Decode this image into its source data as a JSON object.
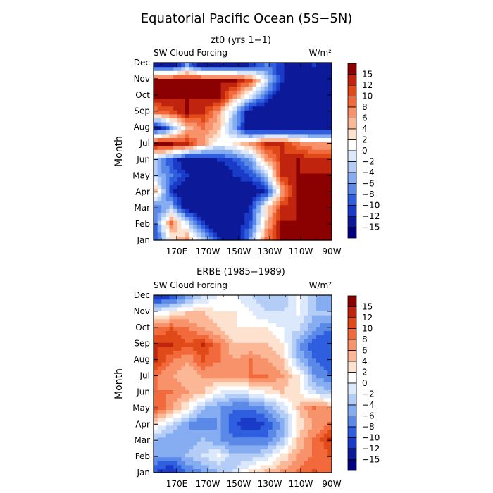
{
  "title": "Equatorial Pacific Ocean (5S−5N)",
  "colorbar_levels": [
    "15",
    "12",
    "10",
    "8",
    "6",
    "4",
    "2",
    "0",
    "−2",
    "−4",
    "−6",
    "−8",
    "−10",
    "−12",
    "−15"
  ],
  "colorbar_colors": [
    "#8b0000",
    "#c0240e",
    "#e04a18",
    "#f26a3c",
    "#f8926a",
    "#fbb796",
    "#fde2cf",
    "#ffffff",
    "#dce8fb",
    "#b3cdf7",
    "#86acf1",
    "#5a89e8",
    "#2f5fdf",
    "#1a3bc8",
    "#0c1a9a",
    "#00007f"
  ],
  "chart_data": [
    {
      "type": "heatmap",
      "subtitle": "zt0 (yrs 1−1)",
      "left_label": "SW Cloud Forcing",
      "units": "W/m²",
      "ylabel": "Month",
      "xticks": [
        "170E",
        "170W",
        "150W",
        "130W",
        "110W",
        "90W"
      ],
      "yticks": [
        "Jan",
        "Feb",
        "Mar",
        "Apr",
        "May",
        "Jun",
        "Jul",
        "Aug",
        "Sep",
        "Oct",
        "Nov",
        "Dec"
      ],
      "x_range": [
        "155E",
        "90W"
      ],
      "levels": [
        -15,
        -12,
        -10,
        -8,
        -6,
        -4,
        -2,
        0,
        2,
        4,
        6,
        8,
        10,
        12,
        15
      ],
      "grid_rows": "Jan to Dec",
      "grid_cols": [
        "160E",
        "170E",
        "180",
        "170W",
        "160W",
        "150W",
        "140W",
        "130W",
        "120W",
        "110W",
        "100W",
        "90W"
      ],
      "values": [
        [
          -10,
          2,
          6,
          -4,
          -12,
          -15,
          -6,
          8,
          15,
          15,
          15,
          15
        ],
        [
          -8,
          8,
          -2,
          -12,
          -15,
          -15,
          -10,
          4,
          15,
          15,
          15,
          15
        ],
        [
          -8,
          -4,
          -15,
          -15,
          -15,
          -15,
          -12,
          2,
          12,
          15,
          15,
          15
        ],
        [
          4,
          -12,
          -15,
          -15,
          -15,
          -15,
          -15,
          -12,
          6,
          15,
          15,
          15
        ],
        [
          -4,
          -8,
          -12,
          -15,
          -15,
          -12,
          -10,
          -4,
          12,
          15,
          15,
          15
        ],
        [
          -4,
          -10,
          -15,
          -15,
          -12,
          -10,
          -6,
          6,
          12,
          15,
          12,
          12
        ],
        [
          15,
          15,
          12,
          6,
          0,
          2,
          6,
          12,
          12,
          8,
          6,
          6
        ],
        [
          -15,
          -6,
          4,
          8,
          4,
          -6,
          -15,
          -15,
          -15,
          -15,
          -15,
          -15
        ],
        [
          8,
          10,
          15,
          12,
          6,
          -4,
          -15,
          -15,
          -15,
          -15,
          -15,
          -15
        ],
        [
          15,
          15,
          15,
          15,
          15,
          6,
          -2,
          -10,
          -15,
          -15,
          -15,
          -15
        ],
        [
          15,
          15,
          15,
          15,
          15,
          15,
          10,
          -2,
          -12,
          -15,
          -15,
          -15
        ],
        [
          -15,
          -15,
          -6,
          -15,
          -15,
          -15,
          -12,
          -8,
          -12,
          -15,
          -12,
          -15
        ]
      ]
    },
    {
      "type": "heatmap",
      "subtitle": "ERBE (1985−1989)",
      "left_label": "SW Cloud Forcing",
      "units": "W/m²",
      "ylabel": "Month",
      "xticks": [
        "170E",
        "170W",
        "150W",
        "130W",
        "110W",
        "90W"
      ],
      "yticks": [
        "Jan",
        "Feb",
        "Mar",
        "Apr",
        "May",
        "Jun",
        "Jul",
        "Aug",
        "Sep",
        "Oct",
        "Nov",
        "Dec"
      ],
      "x_range": [
        "155E",
        "90W"
      ],
      "levels": [
        -15,
        -12,
        -10,
        -8,
        -6,
        -4,
        -2,
        0,
        2,
        4,
        6,
        8,
        10,
        12,
        15
      ],
      "grid_rows": "Jan to Dec",
      "grid_cols": [
        "160E",
        "170E",
        "180",
        "170W",
        "160W",
        "150W",
        "140W",
        "130W",
        "120W",
        "110W",
        "100W",
        "90W"
      ],
      "values": [
        [
          -10,
          -12,
          -8,
          -6,
          -4,
          -2,
          2,
          4,
          6,
          8,
          10,
          8
        ],
        [
          -6,
          -6,
          -4,
          -2,
          0,
          -4,
          -4,
          -2,
          2,
          6,
          8,
          10
        ],
        [
          -4,
          -6,
          -6,
          -4,
          -6,
          -8,
          -8,
          -8,
          -4,
          4,
          8,
          12
        ],
        [
          2,
          -2,
          -6,
          -8,
          -6,
          -10,
          -12,
          -10,
          -6,
          2,
          6,
          8
        ],
        [
          10,
          6,
          2,
          -4,
          -6,
          -8,
          -8,
          -6,
          -2,
          4,
          8,
          6
        ],
        [
          8,
          8,
          6,
          4,
          0,
          -2,
          0,
          2,
          4,
          2,
          -2,
          -4
        ],
        [
          8,
          6,
          4,
          6,
          6,
          6,
          8,
          8,
          6,
          2,
          -6,
          -8
        ],
        [
          12,
          8,
          6,
          10,
          8,
          6,
          8,
          6,
          4,
          -4,
          -8,
          -10
        ],
        [
          12,
          12,
          10,
          12,
          8,
          4,
          4,
          4,
          2,
          -6,
          -10,
          -10
        ],
        [
          8,
          10,
          8,
          6,
          4,
          2,
          2,
          2,
          0,
          -2,
          -6,
          -8
        ],
        [
          0,
          2,
          4,
          4,
          2,
          2,
          0,
          -2,
          -2,
          0,
          -4,
          -4
        ],
        [
          -12,
          -10,
          -6,
          -2,
          0,
          0,
          -2,
          -4,
          -4,
          0,
          -4,
          -6
        ]
      ]
    }
  ]
}
